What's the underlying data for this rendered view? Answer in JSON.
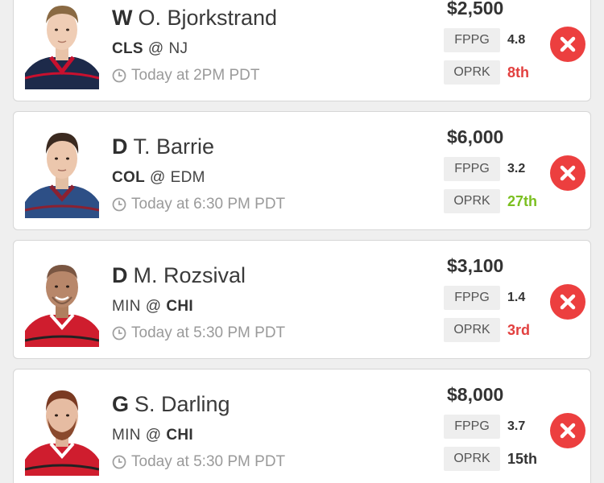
{
  "players": [
    {
      "position": "W",
      "name": "O. Bjorkstrand",
      "away_team": "CLS",
      "home_team": "NJ",
      "bold_team": "away",
      "game_time": "Today at 2PM PDT",
      "salary": "$2,500",
      "fppg_label": "FPPG",
      "fppg": "4.8",
      "oprk_label": "OPRK",
      "oprk": "8th",
      "oprk_color": "#e2403f",
      "jersey_color": "#1d2a4a",
      "jersey_trim": "#c8102e"
    },
    {
      "position": "D",
      "name": "T. Barrie",
      "away_team": "COL",
      "home_team": "EDM",
      "bold_team": "away",
      "game_time": "Today at 6:30 PM PDT",
      "salary": "$6,000",
      "fppg_label": "FPPG",
      "fppg": "3.2",
      "oprk_label": "OPRK",
      "oprk": "27th",
      "oprk_color": "#7bbf20",
      "jersey_color": "#2d4f86",
      "jersey_trim": "#8b2131"
    },
    {
      "position": "D",
      "name": "M. Rozsival",
      "away_team": "MIN",
      "home_team": "CHI",
      "bold_team": "home",
      "game_time": "Today at 5:30 PM PDT",
      "salary": "$3,100",
      "fppg_label": "FPPG",
      "fppg": "1.4",
      "oprk_label": "OPRK",
      "oprk": "3rd",
      "oprk_color": "#e2403f",
      "jersey_color": "#cf1d2e",
      "jersey_trim": "#ffffff"
    },
    {
      "position": "G",
      "name": "S. Darling",
      "away_team": "MIN",
      "home_team": "CHI",
      "bold_team": "home",
      "game_time": "Today at 5:30 PM PDT",
      "salary": "$8,000",
      "fppg_label": "FPPG",
      "fppg": "3.7",
      "oprk_label": "OPRK",
      "oprk": "15th",
      "oprk_color": "#333333",
      "jersey_color": "#cf1d2e",
      "jersey_trim": "#ffffff"
    }
  ],
  "icons": {
    "clock": "clock-icon",
    "remove": "close-icon",
    "photo": "player-headshot"
  }
}
